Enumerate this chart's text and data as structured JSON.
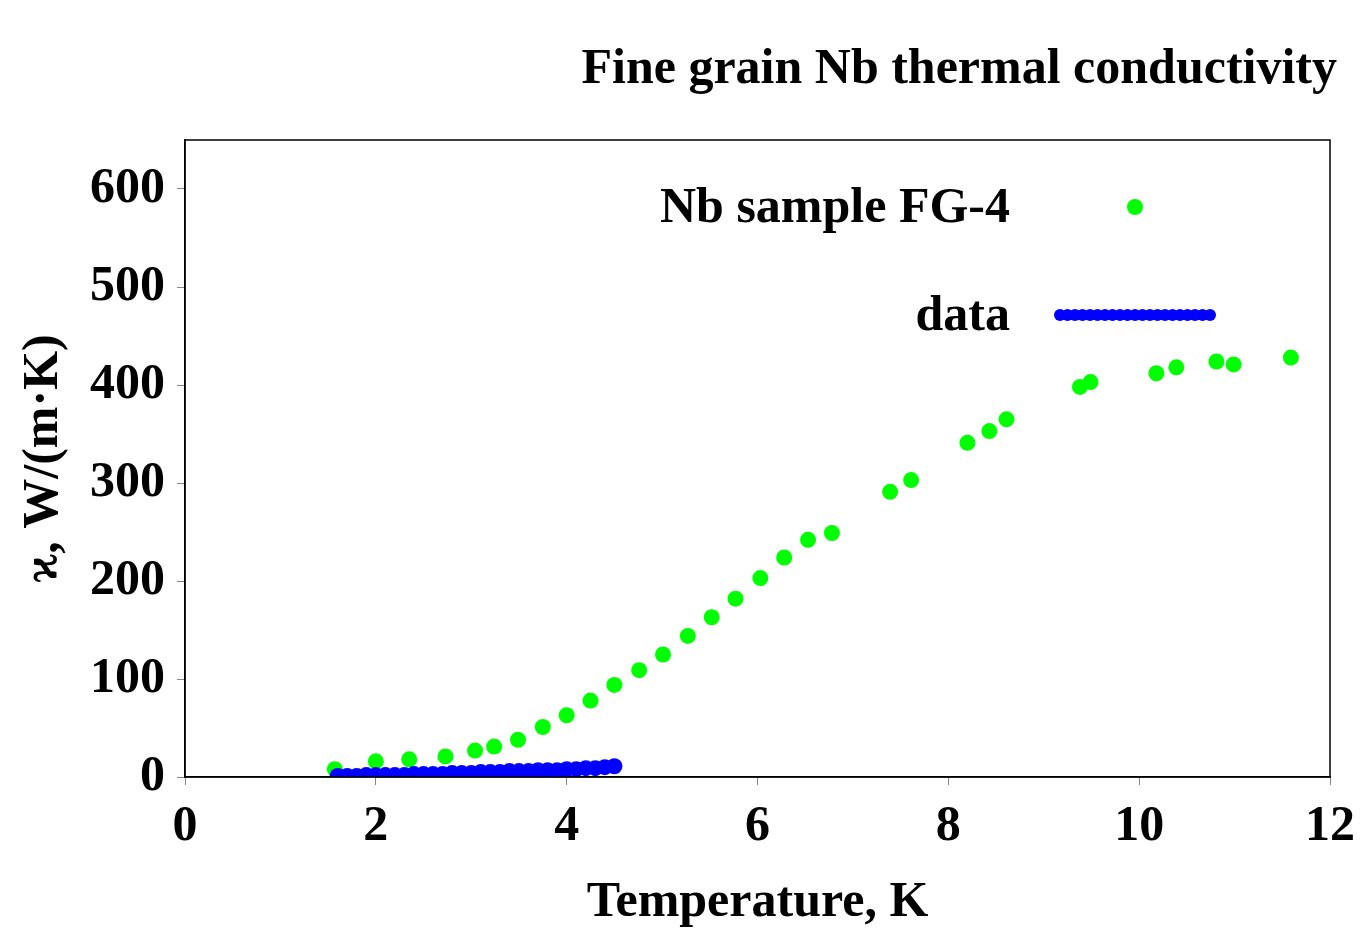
{
  "chart_data": {
    "type": "scatter",
    "title": "Fine grain Nb thermal conductivity",
    "xlabel": "Temperature, K",
    "ylabel": "ϰ, W/(m·K)",
    "xlim": [
      0,
      12
    ],
    "xticks": [
      0,
      2,
      4,
      6,
      8,
      10,
      12
    ],
    "ylim": [
      0,
      650
    ],
    "yticks": [
      0,
      100,
      200,
      300,
      400,
      500,
      600
    ],
    "grid": false,
    "legend": "top right",
    "marker": "circle",
    "series": [
      {
        "name": "Nb sample FG-4",
        "color": "#00ff00",
        "x": [
          1.57,
          2.0,
          2.35,
          2.73,
          3.04,
          3.24,
          3.49,
          3.75,
          4.0,
          4.25,
          4.5,
          4.76,
          5.01,
          5.27,
          5.52,
          5.77,
          6.03,
          6.28,
          6.53,
          6.78,
          7.39,
          7.61,
          8.2,
          8.43,
          8.61,
          9.38,
          9.49,
          10.18,
          10.39,
          10.81,
          10.99,
          11.59
        ],
        "values": [
          8,
          16,
          18,
          21,
          27,
          31,
          38,
          51,
          63,
          78,
          94,
          109,
          125,
          144,
          163,
          182,
          203,
          224,
          242,
          249,
          291,
          303,
          341,
          353,
          365,
          398,
          403,
          412,
          418,
          424,
          421,
          428
        ]
      },
      {
        "name": "data",
        "color": "#0000ff",
        "x": [
          1.6,
          1.7,
          1.8,
          1.9,
          2.0,
          2.1,
          2.2,
          2.3,
          2.4,
          2.5,
          2.6,
          2.7,
          2.8,
          2.9,
          3.0,
          3.1,
          3.2,
          3.3,
          3.4,
          3.5,
          3.6,
          3.7,
          3.8,
          3.9,
          4.0,
          4.1,
          4.2,
          4.3,
          4.4,
          4.5
        ],
        "values": [
          1,
          1,
          1,
          2,
          2,
          2,
          2,
          2,
          3,
          3,
          3,
          3,
          4,
          4,
          4,
          5,
          5,
          5,
          6,
          6,
          6,
          7,
          7,
          7,
          8,
          8,
          9,
          9,
          10,
          11
        ]
      }
    ]
  }
}
